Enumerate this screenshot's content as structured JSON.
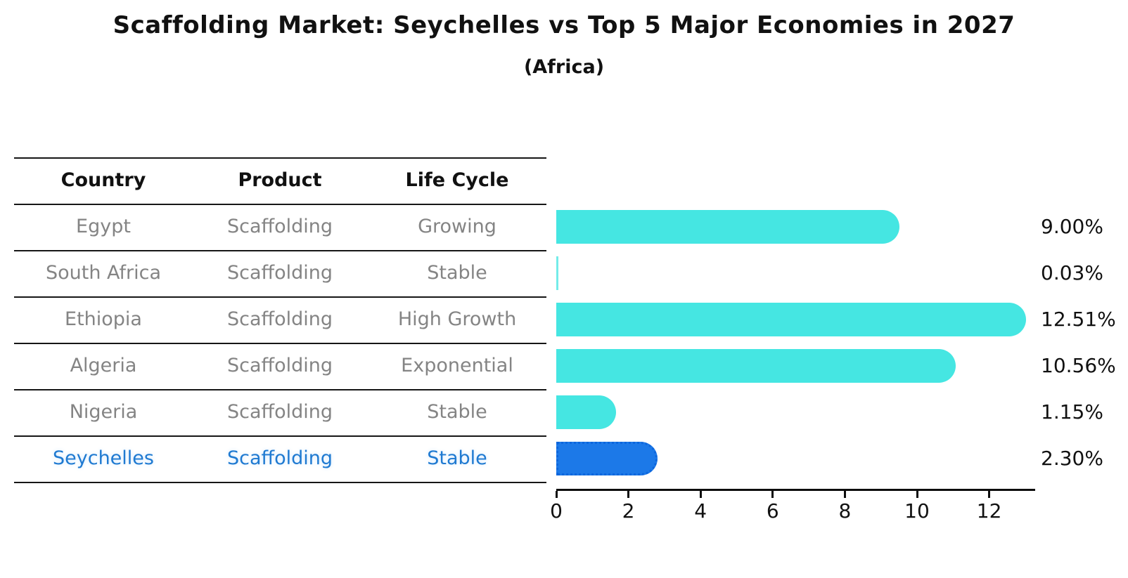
{
  "chart_data": {
    "type": "bar",
    "orientation": "horizontal",
    "title": "Scaffolding Market: Seychelles vs Top 5 Major Economies in 2027",
    "subtitle": "(Africa)",
    "categories": [
      "Egypt",
      "South Africa",
      "Ethiopia",
      "Algeria",
      "Nigeria",
      "Seychelles"
    ],
    "values": [
      9.0,
      0.03,
      12.51,
      10.56,
      1.15,
      2.3
    ],
    "value_labels": [
      "9.00%",
      "0.03%",
      "12.51%",
      "10.56%",
      "1.15%",
      "2.30%"
    ],
    "xticks": [
      "0",
      "2",
      "4",
      "6",
      "8",
      "10",
      "12"
    ],
    "xtick_values": [
      0,
      2,
      4,
      6,
      8,
      10,
      12
    ],
    "xlim": [
      0,
      13.25
    ],
    "grid": false,
    "legend": "none",
    "bar_color": "#45e6e2",
    "highlight_bar_color": "#1c79e8",
    "highlight_index": 5
  },
  "table": {
    "headers": [
      "Country",
      "Product",
      "Life Cycle"
    ],
    "rows": [
      {
        "country": "Egypt",
        "product": "Scaffolding",
        "life_cycle": "Growing"
      },
      {
        "country": "South Africa",
        "product": "Scaffolding",
        "life_cycle": "Stable"
      },
      {
        "country": "Ethiopia",
        "product": "Scaffolding",
        "life_cycle": "High Growth"
      },
      {
        "country": "Algeria",
        "product": "Scaffolding",
        "life_cycle": "Exponential"
      },
      {
        "country": "Nigeria",
        "product": "Scaffolding",
        "life_cycle": "Stable"
      },
      {
        "country": "Seychelles",
        "product": "Scaffolding",
        "life_cycle": "Stable"
      }
    ],
    "highlight_row_index": 5,
    "text_color": "#848484",
    "header_color": "#111111",
    "highlight_text_color": "#1f7ad1"
  }
}
